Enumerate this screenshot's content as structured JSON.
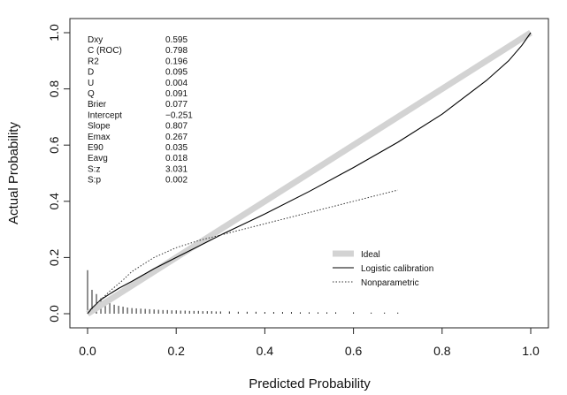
{
  "chart_data": {
    "type": "line",
    "xlabel": "Predicted Probability",
    "ylabel": "Actual Probability",
    "xlim": [
      -0.05,
      1.05
    ],
    "ylim": [
      -0.03,
      1.03
    ],
    "xticks": [
      "0.0",
      "0.2",
      "0.4",
      "0.6",
      "0.8",
      "1.0"
    ],
    "yticks": [
      "0.0",
      "0.2",
      "0.4",
      "0.6",
      "0.8",
      "1.0"
    ],
    "grid": false,
    "legend_position": "bottom-right",
    "stats": [
      {
        "label": "Dxy",
        "value": "0.595"
      },
      {
        "label": "C (ROC)",
        "value": "0.798"
      },
      {
        "label": "R2",
        "value": "0.196"
      },
      {
        "label": "D",
        "value": "0.095"
      },
      {
        "label": "U",
        "value": "0.004"
      },
      {
        "label": "Q",
        "value": "0.091"
      },
      {
        "label": "Brier",
        "value": "0.077"
      },
      {
        "label": "Intercept",
        "value": "−0.251"
      },
      {
        "label": "Slope",
        "value": "0.807"
      },
      {
        "label": "Emax",
        "value": "0.267"
      },
      {
        "label": "E90",
        "value": "0.035"
      },
      {
        "label": "Eavg",
        "value": "0.018"
      },
      {
        "label": "S:z",
        "value": "3.031"
      },
      {
        "label": "S:p",
        "value": "0.002"
      }
    ],
    "series": [
      {
        "name": "Ideal",
        "style": "thick",
        "color": "#d3d3d3",
        "x": [
          0,
          1
        ],
        "y": [
          0,
          1
        ]
      },
      {
        "name": "Logistic calibration",
        "style": "solid",
        "color": "#000000",
        "x": [
          0.0,
          0.01,
          0.02,
          0.03,
          0.05,
          0.07,
          0.1,
          0.15,
          0.2,
          0.25,
          0.3,
          0.4,
          0.5,
          0.6,
          0.7,
          0.8,
          0.9,
          0.95,
          0.98,
          1.0
        ],
        "y": [
          0.0,
          0.02,
          0.035,
          0.05,
          0.07,
          0.09,
          0.115,
          0.16,
          0.2,
          0.24,
          0.28,
          0.355,
          0.435,
          0.52,
          0.61,
          0.71,
          0.83,
          0.9,
          0.955,
          1.0
        ]
      },
      {
        "name": "Nonparametric",
        "style": "dotted",
        "color": "#333333",
        "x": [
          0.0,
          0.02,
          0.05,
          0.08,
          0.1,
          0.15,
          0.2,
          0.25,
          0.3,
          0.4,
          0.5,
          0.6,
          0.7
        ],
        "y": [
          0.0,
          0.035,
          0.08,
          0.12,
          0.15,
          0.2,
          0.235,
          0.26,
          0.28,
          0.32,
          0.36,
          0.4,
          0.44
        ]
      }
    ],
    "rug": {
      "x": [
        0.0,
        0.01,
        0.02,
        0.03,
        0.04,
        0.05,
        0.06,
        0.07,
        0.08,
        0.09,
        0.1,
        0.11,
        0.12,
        0.13,
        0.14,
        0.15,
        0.16,
        0.17,
        0.18,
        0.19,
        0.2,
        0.21,
        0.22,
        0.23,
        0.24,
        0.25,
        0.26,
        0.27,
        0.28,
        0.29,
        0.3,
        0.32,
        0.34,
        0.36,
        0.38,
        0.4,
        0.42,
        0.44,
        0.46,
        0.48,
        0.5,
        0.52,
        0.54,
        0.56,
        0.6,
        0.64,
        0.67,
        0.7
      ],
      "h": [
        0.155,
        0.085,
        0.07,
        0.055,
        0.045,
        0.038,
        0.032,
        0.028,
        0.025,
        0.022,
        0.02,
        0.019,
        0.018,
        0.017,
        0.016,
        0.015,
        0.014,
        0.013,
        0.013,
        0.012,
        0.012,
        0.011,
        0.011,
        0.01,
        0.01,
        0.01,
        0.009,
        0.009,
        0.009,
        0.008,
        0.008,
        0.008,
        0.007,
        0.007,
        0.007,
        0.006,
        0.006,
        0.006,
        0.006,
        0.005,
        0.005,
        0.005,
        0.005,
        0.005,
        0.005,
        0.004,
        0.004,
        0.004
      ]
    }
  }
}
